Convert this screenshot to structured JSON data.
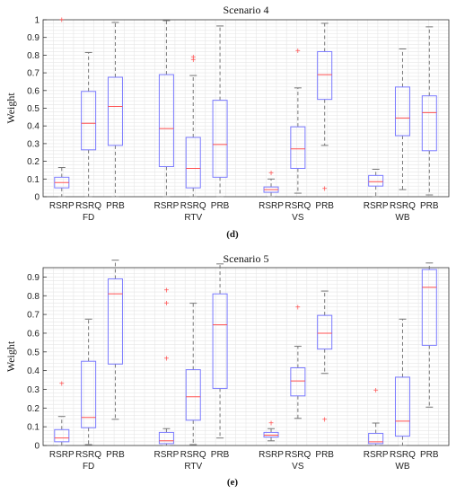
{
  "chart_data": [
    {
      "type": "box",
      "title": "Scenario 4",
      "panel_label": "(d)",
      "ylabel": "Weight",
      "ylim": [
        0,
        1
      ],
      "yticks": [
        0,
        0.1,
        0.2,
        0.3,
        0.4,
        0.5,
        0.6,
        0.7,
        0.8,
        0.9,
        1
      ],
      "ytick_labels": [
        "0",
        "0.1",
        "0.2",
        "0.3",
        "0.4",
        "0.5",
        "0.6",
        "0.7",
        "0.8",
        "0.9",
        "1"
      ],
      "grid": true,
      "groups": [
        "FD",
        "RTV",
        "VS",
        "WB"
      ],
      "boxes": [
        {
          "group": "FD",
          "label": "RSRP",
          "min": 0.0,
          "q1": 0.05,
          "median": 0.08,
          "q3": 0.11,
          "max": 0.165,
          "outliers": [
            1.0
          ]
        },
        {
          "group": "FD",
          "label": "RSRQ",
          "min": 0.0,
          "q1": 0.265,
          "median": 0.415,
          "q3": 0.595,
          "max": 0.815,
          "outliers": []
        },
        {
          "group": "FD",
          "label": "PRB",
          "min": 0.0,
          "q1": 0.29,
          "median": 0.51,
          "q3": 0.675,
          "max": 0.985,
          "outliers": []
        },
        {
          "group": "RTV",
          "label": "RSRP",
          "min": 0.0,
          "q1": 0.17,
          "median": 0.385,
          "q3": 0.69,
          "max": 0.995,
          "outliers": []
        },
        {
          "group": "RTV",
          "label": "RSRQ",
          "min": 0.0,
          "q1": 0.05,
          "median": 0.16,
          "q3": 0.335,
          "max": 0.685,
          "outliers": [
            0.775,
            0.79
          ]
        },
        {
          "group": "RTV",
          "label": "PRB",
          "min": 0.0,
          "q1": 0.11,
          "median": 0.295,
          "q3": 0.545,
          "max": 0.965,
          "outliers": []
        },
        {
          "group": "VS",
          "label": "RSRP",
          "min": 0.0,
          "q1": 0.025,
          "median": 0.04,
          "q3": 0.055,
          "max": 0.1,
          "outliers": [
            0.135
          ]
        },
        {
          "group": "VS",
          "label": "RSRQ",
          "min": 0.02,
          "q1": 0.16,
          "median": 0.27,
          "q3": 0.395,
          "max": 0.615,
          "outliers": [
            0.825
          ]
        },
        {
          "group": "VS",
          "label": "PRB",
          "min": 0.29,
          "q1": 0.55,
          "median": 0.69,
          "q3": 0.82,
          "max": 0.98,
          "outliers": [
            0.045
          ]
        },
        {
          "group": "WB",
          "label": "RSRP",
          "min": 0.0,
          "q1": 0.06,
          "median": 0.085,
          "q3": 0.12,
          "max": 0.155,
          "outliers": []
        },
        {
          "group": "WB",
          "label": "RSRQ",
          "min": 0.04,
          "q1": 0.345,
          "median": 0.445,
          "q3": 0.62,
          "max": 0.835,
          "outliers": []
        },
        {
          "group": "WB",
          "label": "PRB",
          "min": 0.01,
          "q1": 0.26,
          "median": 0.475,
          "q3": 0.57,
          "max": 0.96,
          "outliers": []
        }
      ]
    },
    {
      "type": "box",
      "title": "Scenario 5",
      "panel_label": "(e)",
      "ylabel": "Weight",
      "ylim": [
        0,
        0.95
      ],
      "yticks": [
        0,
        0.1,
        0.2,
        0.3,
        0.4,
        0.5,
        0.6,
        0.7,
        0.8,
        0.9
      ],
      "ytick_labels": [
        "0",
        "0.1",
        "0.2",
        "0.3",
        "0.4",
        "0.5",
        "0.6",
        "0.7",
        "0.8",
        "0.9"
      ],
      "grid": true,
      "groups": [
        "FD",
        "RTV",
        "VS",
        "WB"
      ],
      "boxes": [
        {
          "group": "FD",
          "label": "RSRP",
          "min": 0.0,
          "q1": 0.02,
          "median": 0.04,
          "q3": 0.085,
          "max": 0.155,
          "outliers": [
            0.33
          ]
        },
        {
          "group": "FD",
          "label": "RSRQ",
          "min": 0.005,
          "q1": 0.095,
          "median": 0.15,
          "q3": 0.45,
          "max": 0.675,
          "outliers": []
        },
        {
          "group": "FD",
          "label": "PRB",
          "min": 0.14,
          "q1": 0.435,
          "median": 0.81,
          "q3": 0.89,
          "max": 0.99,
          "outliers": []
        },
        {
          "group": "RTV",
          "label": "RSRP",
          "min": 0.0,
          "q1": 0.01,
          "median": 0.025,
          "q3": 0.07,
          "max": 0.09,
          "outliers": [
            0.465,
            0.76,
            0.83
          ]
        },
        {
          "group": "RTV",
          "label": "RSRQ",
          "min": 0.005,
          "q1": 0.135,
          "median": 0.26,
          "q3": 0.405,
          "max": 0.76,
          "outliers": []
        },
        {
          "group": "RTV",
          "label": "PRB",
          "min": 0.04,
          "q1": 0.305,
          "median": 0.645,
          "q3": 0.81,
          "max": 0.97,
          "outliers": []
        },
        {
          "group": "VS",
          "label": "RSRP",
          "min": 0.025,
          "q1": 0.045,
          "median": 0.055,
          "q3": 0.07,
          "max": 0.09,
          "outliers": [
            0.12
          ]
        },
        {
          "group": "VS",
          "label": "RSRQ",
          "min": 0.145,
          "q1": 0.265,
          "median": 0.345,
          "q3": 0.415,
          "max": 0.53,
          "outliers": [
            0.74
          ]
        },
        {
          "group": "VS",
          "label": "PRB",
          "min": 0.385,
          "q1": 0.515,
          "median": 0.6,
          "q3": 0.695,
          "max": 0.825,
          "outliers": [
            0.14
          ]
        },
        {
          "group": "WB",
          "label": "RSRP",
          "min": 0.0,
          "q1": 0.01,
          "median": 0.02,
          "q3": 0.065,
          "max": 0.12,
          "outliers": [
            0.295
          ]
        },
        {
          "group": "WB",
          "label": "RSRQ",
          "min": 0.0,
          "q1": 0.05,
          "median": 0.13,
          "q3": 0.365,
          "max": 0.675,
          "outliers": []
        },
        {
          "group": "WB",
          "label": "PRB",
          "min": 0.205,
          "q1": 0.535,
          "median": 0.845,
          "q3": 0.94,
          "max": 0.975,
          "outliers": []
        }
      ]
    }
  ],
  "colors": {
    "box": "#7b7bff",
    "median": "#ff5050",
    "outlier": "#ff5050",
    "whisker": "#777777",
    "grid": "#e6e6e6",
    "axis": "#333333"
  }
}
